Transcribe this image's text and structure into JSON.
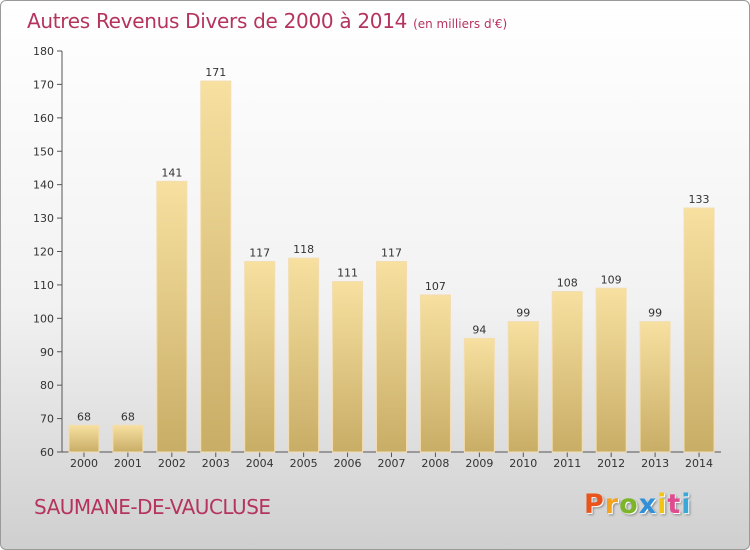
{
  "title": "Autres Revenus Divers de 2000 à 2014",
  "subtitle": "(en milliers d'€)",
  "location": "SAUMANE-DE-VAUCLUSE",
  "logo": {
    "letters": [
      "P",
      "r",
      "o",
      "x",
      "i",
      "t",
      "i"
    ],
    "colors": [
      "#e8541c",
      "#f4a11b",
      "#7db528",
      "#2f8fd8",
      "#f2c515",
      "#e04a8f",
      "#3aa7d9"
    ]
  },
  "colors": {
    "bar_light": "#f7e0a0",
    "bar_dark": "#c8ad66",
    "title": "#b5345e"
  },
  "chart_data": {
    "type": "bar",
    "categories": [
      "2000",
      "2001",
      "2002",
      "2003",
      "2004",
      "2005",
      "2006",
      "2007",
      "2008",
      "2009",
      "2010",
      "2011",
      "2012",
      "2013",
      "2014"
    ],
    "values": [
      68,
      68,
      141,
      171,
      117,
      118,
      111,
      117,
      107,
      94,
      99,
      108,
      109,
      99,
      133
    ],
    "ylim": [
      60,
      180
    ],
    "yticks": [
      60,
      70,
      80,
      90,
      100,
      110,
      120,
      130,
      140,
      150,
      160,
      170,
      180
    ],
    "grid": false,
    "legend": "none"
  }
}
